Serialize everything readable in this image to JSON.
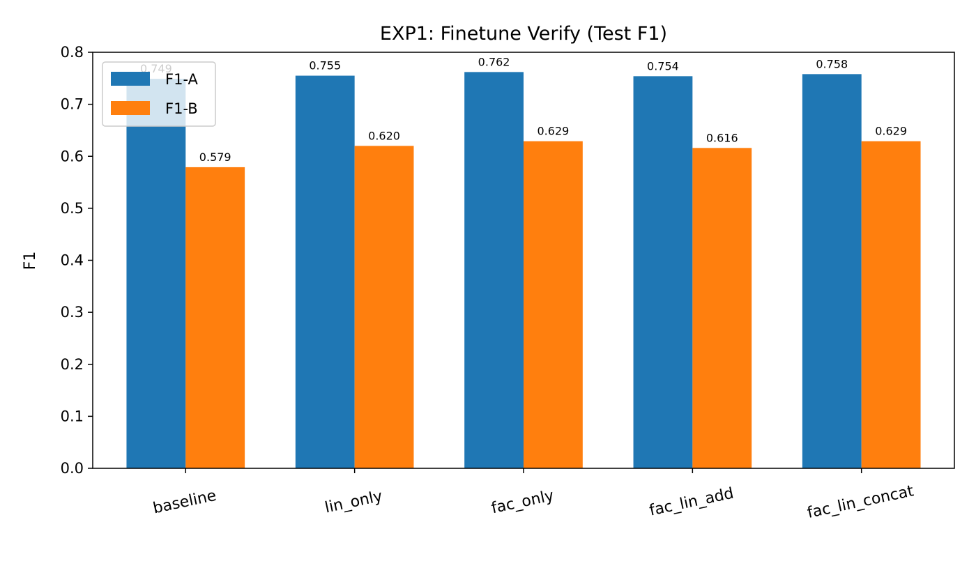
{
  "chart_data": {
    "type": "bar",
    "title": "EXP1: Finetune Verify (Test F1)",
    "xlabel": "",
    "ylabel": "F1",
    "ylim": [
      0,
      0.8
    ],
    "yticks": [
      "0.0",
      "0.1",
      "0.2",
      "0.3",
      "0.4",
      "0.5",
      "0.6",
      "0.7",
      "0.8"
    ],
    "categories": [
      "baseline",
      "lin_only",
      "fac_only",
      "fac_lin_add",
      "fac_lin_concat"
    ],
    "series": [
      {
        "name": "F1-A",
        "color": "#1f77b4",
        "values": [
          0.749,
          0.755,
          0.762,
          0.754,
          0.758
        ],
        "labels": [
          "0.749",
          "0.755",
          "0.762",
          "0.754",
          "0.758"
        ]
      },
      {
        "name": "F1-B",
        "color": "#ff7f0e",
        "values": [
          0.579,
          0.62,
          0.629,
          0.616,
          0.629
        ],
        "labels": [
          "0.579",
          "0.620",
          "0.629",
          "0.616",
          "0.629"
        ]
      }
    ],
    "legend_position": "top-left",
    "grid": false
  }
}
